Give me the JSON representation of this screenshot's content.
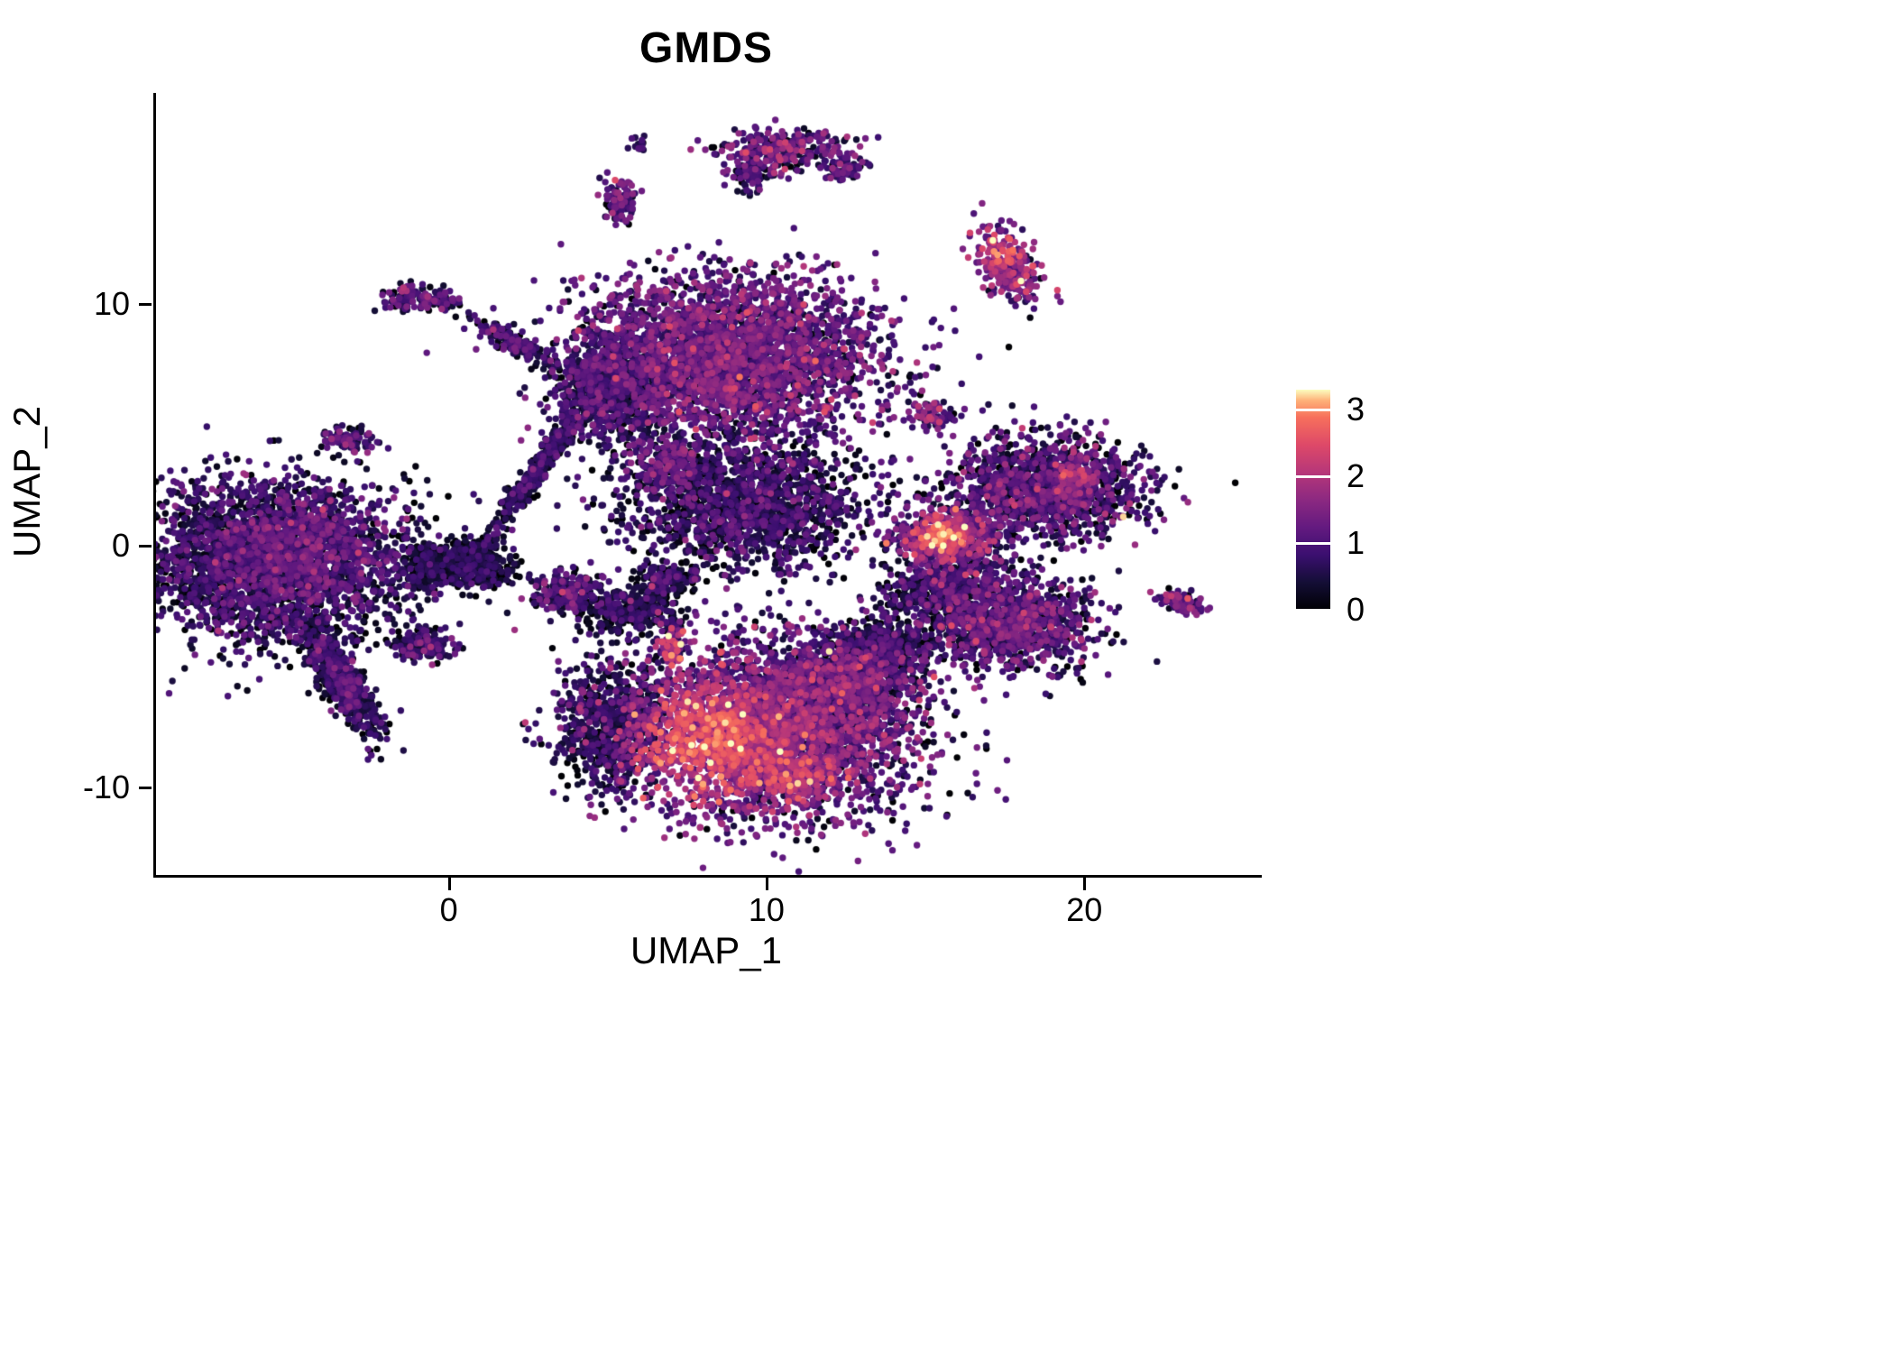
{
  "chart_data": {
    "type": "scatter",
    "title": "GMDS",
    "xlabel": "UMAP_1",
    "ylabel": "UMAP_2",
    "xlim": [
      -9.3,
      25.5
    ],
    "ylim": [
      -13.6,
      18.7
    ],
    "x_ticks": [
      0,
      10,
      20
    ],
    "y_ticks": [
      -10,
      0,
      10
    ],
    "legend_ticks": [
      0,
      1,
      2,
      3
    ],
    "color_max": 3.3,
    "point_radius": 3.7,
    "grid": false,
    "legend_position": "right",
    "colormap": [
      [
        0.0,
        "#000004"
      ],
      [
        0.125,
        "#140e36"
      ],
      [
        0.25,
        "#3b0f70"
      ],
      [
        0.375,
        "#641a80"
      ],
      [
        0.5,
        "#8c2981"
      ],
      [
        0.625,
        "#b73779"
      ],
      [
        0.75,
        "#de4968"
      ],
      [
        0.875,
        "#f7705c"
      ],
      [
        0.95,
        "#feb078"
      ],
      [
        1.0,
        "#fcfdbf"
      ]
    ],
    "clusters": [
      {
        "name": "left-main",
        "x": -5.5,
        "y": -0.6,
        "sx": 2.0,
        "sy": 1.6,
        "n": 3200,
        "mean": 0.5,
        "sd": 0.45,
        "hot": {
          "x": -4.2,
          "y": 0.3,
          "r": 2.2,
          "boost": 0.35
        }
      },
      {
        "name": "left-tail",
        "x": -3.5,
        "y": -5.5,
        "sx": 1.25,
        "sy": 0.32,
        "angle": -65,
        "n": 650,
        "mean": 0.5,
        "sd": 0.4
      },
      {
        "name": "left-appendix-a",
        "x": -0.6,
        "y": -0.9,
        "sx": 0.55,
        "sy": 0.45,
        "n": 260,
        "mean": 0.3,
        "sd": 0.3
      },
      {
        "name": "left-appendix-b",
        "x": 0.9,
        "y": -1.0,
        "sx": 0.5,
        "sy": 0.4,
        "n": 230,
        "mean": 0.3,
        "sd": 0.3
      },
      {
        "name": "left-small-low",
        "x": -0.9,
        "y": -4.1,
        "sx": 0.5,
        "sy": 0.32,
        "n": 170,
        "mean": 0.6,
        "sd": 0.45
      },
      {
        "name": "left-mid-small",
        "x": -3.2,
        "y": 4.4,
        "sx": 0.42,
        "sy": 0.28,
        "n": 100,
        "mean": 0.7,
        "sd": 0.45
      },
      {
        "name": "topleft-small-a",
        "x": -1.35,
        "y": 10.3,
        "sx": 0.4,
        "sy": 0.25,
        "n": 90,
        "mean": 0.8,
        "sd": 0.5
      },
      {
        "name": "topleft-small-b",
        "x": -0.35,
        "y": 10.15,
        "sx": 0.3,
        "sy": 0.2,
        "n": 60,
        "mean": 0.7,
        "sd": 0.45
      },
      {
        "name": "upper-left-dash",
        "x": 1.8,
        "y": 8.5,
        "sx": 0.75,
        "sy": 0.2,
        "angle": -35,
        "n": 150,
        "mean": 0.7,
        "sd": 0.5
      },
      {
        "name": "diag-stream",
        "x": 2.8,
        "y": 3.3,
        "sx": 1.7,
        "sy": 0.18,
        "angle": 62,
        "n": 420,
        "mean": 0.5,
        "sd": 0.4
      },
      {
        "name": "stream-bridge",
        "x": 0.7,
        "y": -0.2,
        "sx": 0.45,
        "sy": 0.3,
        "n": 120,
        "mean": 0.35,
        "sd": 0.3
      },
      {
        "name": "central-upper-main",
        "x": 8.7,
        "y": 7.8,
        "sx": 2.3,
        "sy": 1.6,
        "n": 3300,
        "mean": 1.0,
        "sd": 0.5
      },
      {
        "name": "central-upper-darkleft",
        "x": 5.0,
        "y": 6.4,
        "sx": 0.9,
        "sy": 1.1,
        "n": 750,
        "mean": 0.55,
        "sd": 0.4
      },
      {
        "name": "central-mid",
        "x": 9.3,
        "y": 1.8,
        "sx": 1.9,
        "sy": 1.35,
        "n": 1700,
        "mean": 0.55,
        "sd": 0.45
      },
      {
        "name": "central-left-spur",
        "x": 6.8,
        "y": 3.4,
        "sx": 0.6,
        "sy": 0.5,
        "n": 200,
        "mean": 0.9,
        "sd": 0.55
      },
      {
        "name": "mid-small-a",
        "x": 3.7,
        "y": -2.0,
        "sx": 0.6,
        "sy": 0.45,
        "n": 230,
        "mean": 0.7,
        "sd": 0.5
      },
      {
        "name": "mid-small-b",
        "x": 5.6,
        "y": -2.7,
        "sx": 0.75,
        "sy": 0.45,
        "n": 300,
        "mean": 0.35,
        "sd": 0.35
      },
      {
        "name": "mid-small-c",
        "x": 6.8,
        "y": -1.4,
        "sx": 0.5,
        "sy": 0.35,
        "n": 170,
        "mean": 0.5,
        "sd": 0.4
      },
      {
        "name": "tiny-bright",
        "x": 6.95,
        "y": -4.2,
        "sx": 0.22,
        "sy": 0.35,
        "n": 70,
        "mean": 1.6,
        "sd": 0.7
      },
      {
        "name": "tiny-dark-above",
        "x": 7.0,
        "y": -3.3,
        "sx": 0.18,
        "sy": 0.15,
        "n": 30,
        "mean": 0.5,
        "sd": 0.4
      },
      {
        "name": "bottom-main",
        "x": 9.8,
        "y": -7.6,
        "sx": 2.4,
        "sy": 1.8,
        "n": 3800,
        "mean": 1.05,
        "sd": 0.55,
        "hot": {
          "x": 7.9,
          "y": -8.1,
          "r": 1.5,
          "boost": 1.25
        }
      },
      {
        "name": "bottom-dark-left",
        "x": 5.1,
        "y": -7.4,
        "sx": 0.85,
        "sy": 1.25,
        "n": 700,
        "mean": 0.45,
        "sd": 0.35
      },
      {
        "name": "bottom-hot2",
        "x": 10.7,
        "y": -9.6,
        "sx": 0.8,
        "sy": 0.5,
        "n": 260,
        "mean": 1.7,
        "sd": 0.5
      },
      {
        "name": "bottom-right-mix",
        "x": 12.6,
        "y": -5.7,
        "sx": 1.1,
        "sy": 1.0,
        "n": 800,
        "mean": 0.8,
        "sd": 0.6
      },
      {
        "name": "bottom-right-dark",
        "x": 13.6,
        "y": -4.2,
        "sx": 0.8,
        "sy": 0.6,
        "n": 420,
        "mean": 0.5,
        "sd": 0.45
      },
      {
        "name": "right-bright",
        "x": 15.6,
        "y": 0.3,
        "sx": 0.85,
        "sy": 0.6,
        "n": 520,
        "mean": 1.1,
        "sd": 0.6,
        "hot": {
          "x": 15.4,
          "y": 0.45,
          "r": 0.55,
          "boost": 1.3
        }
      },
      {
        "name": "right-main",
        "x": 18.6,
        "y": 2.4,
        "sx": 1.5,
        "sy": 1.05,
        "n": 1500,
        "mean": 0.7,
        "sd": 0.55,
        "hot": {
          "x": 19.7,
          "y": 2.9,
          "r": 0.5,
          "boost": 0.7
        }
      },
      {
        "name": "right-lower",
        "x": 17.6,
        "y": -3.2,
        "sx": 1.3,
        "sy": 0.95,
        "n": 1150,
        "mean": 0.8,
        "sd": 0.55
      },
      {
        "name": "right-lower-spur",
        "x": 15.7,
        "y": -1.9,
        "sx": 0.65,
        "sy": 0.5,
        "n": 230,
        "mean": 0.6,
        "sd": 0.45
      },
      {
        "name": "bridge-right-a",
        "x": 16.3,
        "y": -0.9,
        "sx": 0.6,
        "sy": 0.6,
        "n": 140,
        "mean": 0.5,
        "sd": 0.45
      },
      {
        "name": "bridge-right-b",
        "x": 14.4,
        "y": -1.9,
        "sx": 0.6,
        "sy": 0.6,
        "n": 130,
        "mean": 0.5,
        "sd": 0.45
      },
      {
        "name": "topright-small",
        "x": 17.5,
        "y": 11.6,
        "sx": 0.45,
        "sy": 0.85,
        "angle": 20,
        "n": 280,
        "mean": 1.3,
        "sd": 0.6,
        "hot": {
          "x": 17.4,
          "y": 12.2,
          "r": 0.5,
          "boost": 0.8
        }
      },
      {
        "name": "top-small-main",
        "x": 10.4,
        "y": 16.3,
        "sx": 1.05,
        "sy": 0.45,
        "n": 300,
        "mean": 0.9,
        "sd": 0.55
      },
      {
        "name": "top-small-hook",
        "x": 9.4,
        "y": 15.4,
        "sx": 0.3,
        "sy": 0.35,
        "n": 70,
        "mean": 0.7,
        "sd": 0.5
      },
      {
        "name": "top-small-tailr",
        "x": 12.3,
        "y": 15.6,
        "sx": 0.4,
        "sy": 0.25,
        "n": 60,
        "mean": 0.9,
        "sd": 0.5
      },
      {
        "name": "top-tiny-a",
        "x": 5.3,
        "y": 14.2,
        "sx": 0.3,
        "sy": 0.45,
        "n": 110,
        "mean": 0.8,
        "sd": 0.5
      },
      {
        "name": "top-tiny-b",
        "x": 5.9,
        "y": 16.6,
        "sx": 0.12,
        "sy": 0.12,
        "n": 14,
        "mean": 0.6,
        "sd": 0.4
      },
      {
        "name": "right-upper-tiny",
        "x": 15.2,
        "y": 5.4,
        "sx": 0.4,
        "sy": 0.3,
        "n": 80,
        "mean": 0.9,
        "sd": 0.6
      },
      {
        "name": "far-right-tiny",
        "x": 22.9,
        "y": -2.3,
        "sx": 0.42,
        "sy": 0.22,
        "angle": -25,
        "n": 90,
        "mean": 0.9,
        "sd": 0.5
      }
    ]
  }
}
